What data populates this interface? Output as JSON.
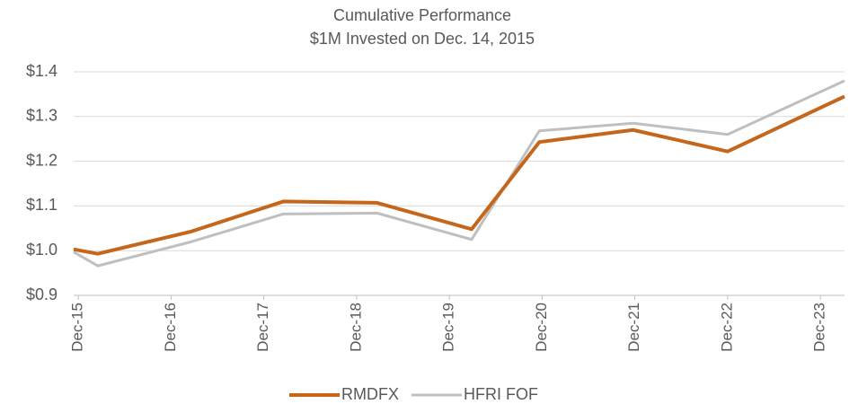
{
  "chart_data": {
    "type": "line",
    "title": "Cumulative Performance",
    "subtitle": "$1M Invested on Dec. 14, 2015",
    "x": [
      2015.9,
      2016.16,
      2017.17,
      2018.16,
      2019.17,
      2020.19,
      2020.92,
      2021.93,
      2022.95,
      2024.21
    ],
    "series": [
      {
        "name": "RMDFX",
        "color": "#c5661b",
        "values": [
          1.003,
          0.993,
          1.043,
          1.11,
          1.107,
          1.048,
          1.243,
          1.27,
          1.222,
          1.345
        ]
      },
      {
        "name": "HFRI FOF",
        "color": "#bfbfbf",
        "values": [
          0.997,
          0.966,
          1.02,
          1.082,
          1.084,
          1.025,
          1.268,
          1.285,
          1.26,
          1.38
        ]
      }
    ],
    "xlim": [
      2015.9,
      2024.21
    ],
    "xticks": [
      {
        "value": 2015.95,
        "label": "Dec-15"
      },
      {
        "value": 2016.95,
        "label": "Dec-16"
      },
      {
        "value": 2017.95,
        "label": "Dec-17"
      },
      {
        "value": 2018.95,
        "label": "Dec-18"
      },
      {
        "value": 2019.95,
        "label": "Dec-19"
      },
      {
        "value": 2020.95,
        "label": "Dec-20"
      },
      {
        "value": 2021.95,
        "label": "Dec-21"
      },
      {
        "value": 2022.95,
        "label": "Dec-22"
      },
      {
        "value": 2023.95,
        "label": "Dec-23"
      }
    ],
    "ylim": [
      0.9,
      1.4
    ],
    "yticks": [
      {
        "value": 0.9,
        "label": "$0.9"
      },
      {
        "value": 1.0,
        "label": "$1.0"
      },
      {
        "value": 1.1,
        "label": "$1.1"
      },
      {
        "value": 1.2,
        "label": "$1.2"
      },
      {
        "value": 1.3,
        "label": "$1.3"
      },
      {
        "value": 1.4,
        "label": "$1.4"
      }
    ],
    "grid": true,
    "legend": "bottom"
  }
}
